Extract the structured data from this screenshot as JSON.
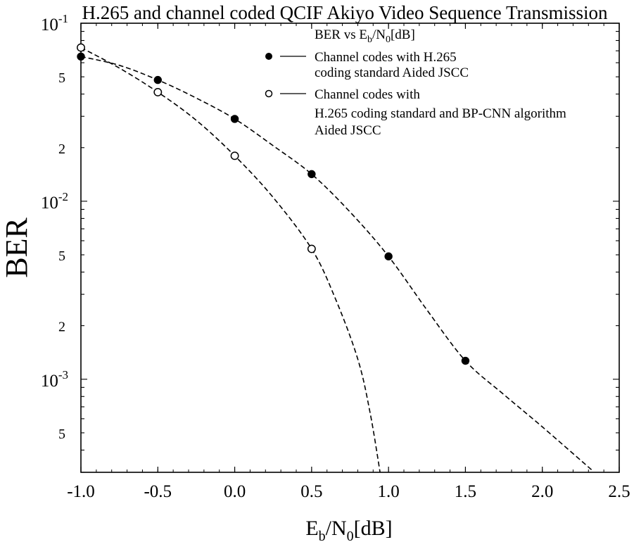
{
  "chart_data": {
    "type": "line",
    "title": "H.265 and channel coded QCIF Akiyo Video Sequence Transmission",
    "xlabel": {
      "main": "E",
      "sub1": "b",
      "mid": "/N",
      "sub2": "0",
      "tail": "[dB]"
    },
    "ylabel": "BER",
    "y_scale": "log",
    "xlim": [
      -1.0,
      2.5
    ],
    "ylim": [
      0.0003,
      0.1
    ],
    "grid": false,
    "legend_position": "top-right",
    "x_ticks": [
      "-1.0",
      "-0.5",
      "0.0",
      "0.5",
      "1.0",
      "1.5",
      "2.0",
      "2.5"
    ],
    "y_decade_ticks": [
      {
        "value": 0.1,
        "base": "10",
        "exp": "-1"
      },
      {
        "value": 0.01,
        "base": "10",
        "exp": "-2"
      },
      {
        "value": 0.001,
        "base": "10",
        "exp": "-3"
      }
    ],
    "y_minor_ticks": [
      {
        "value": 0.05,
        "label": "5"
      },
      {
        "value": 0.02,
        "label": "2"
      },
      {
        "value": 0.005,
        "label": "5"
      },
      {
        "value": 0.002,
        "label": "2"
      },
      {
        "value": 0.0005,
        "label": "5"
      }
    ],
    "legend_title": {
      "main": "BER vs E",
      "sub1": "b",
      "mid": "/N",
      "sub2": "0",
      "tail": "[dB]"
    },
    "series": [
      {
        "name_lines": [
          "Channel codes with H.265",
          "coding standard Aided JSCC"
        ],
        "marker": "filled-circle",
        "x": [
          -1.0,
          -0.5,
          0.0,
          0.5,
          1.0,
          1.5
        ],
        "y": [
          0.065,
          0.048,
          0.029,
          0.0142,
          0.0049,
          0.00127
        ],
        "curve_x": [
          -1.0,
          -0.75,
          -0.5,
          -0.25,
          0.0,
          0.25,
          0.5,
          0.75,
          1.0,
          1.25,
          1.5,
          1.75,
          2.0,
          2.32
        ],
        "curve_y": [
          0.065,
          0.058,
          0.048,
          0.038,
          0.029,
          0.0205,
          0.0142,
          0.0087,
          0.0049,
          0.00245,
          0.00127,
          0.00082,
          0.00054,
          0.00031
        ]
      },
      {
        "name_lines": [
          "Channel codes with",
          "H.265 coding standard and BP-CNN algorithm",
          "Aided JSCC"
        ],
        "marker": "open-circle",
        "x": [
          -1.0,
          -0.5,
          0.0,
          0.5
        ],
        "y": [
          0.073,
          0.041,
          0.018,
          0.0054
        ],
        "curve_x": [
          -1.0,
          -0.75,
          -0.5,
          -0.25,
          0.0,
          0.25,
          0.5,
          0.65,
          0.8,
          0.88,
          0.945
        ],
        "curve_y": [
          0.073,
          0.056,
          0.041,
          0.0285,
          0.018,
          0.0105,
          0.0054,
          0.0029,
          0.0013,
          0.00065,
          0.0003
        ]
      }
    ],
    "colors": {
      "axis": "#000000",
      "line": "#000000",
      "background": "#ffffff"
    }
  }
}
